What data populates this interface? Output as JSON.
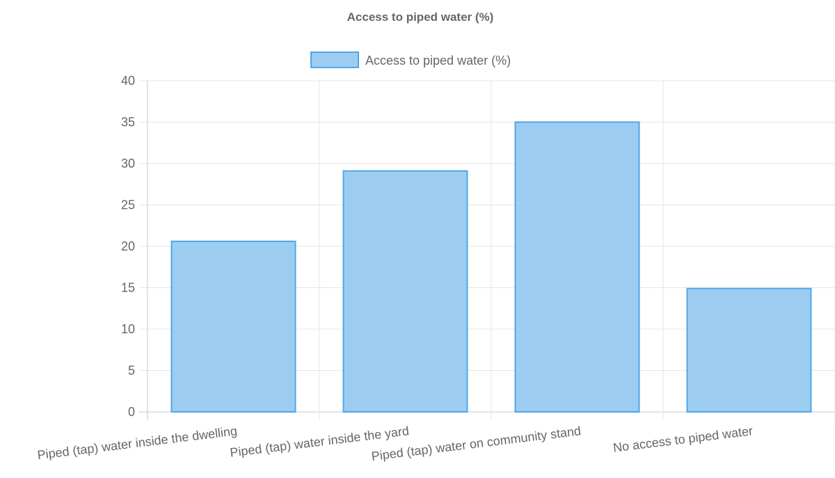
{
  "chart_data": {
    "type": "bar",
    "title": "Access to piped water (%)",
    "categories": [
      "Piped (tap) water inside the dwelling",
      "Piped (tap) water inside the yard",
      "Piped (tap) water on community stand",
      "No access to piped water"
    ],
    "series": [
      {
        "name": "Access to piped water (%)",
        "values": [
          20.6,
          29.1,
          35.0,
          14.9
        ]
      }
    ],
    "y_ticks": [
      "0",
      "5",
      "10",
      "15",
      "20",
      "25",
      "30",
      "35",
      "40"
    ],
    "ylim": [
      0,
      40
    ],
    "legend_position": "top",
    "grid": true,
    "colors": {
      "bar_fill": "#9ccdf1",
      "bar_stroke": "#4ea7e8"
    }
  }
}
